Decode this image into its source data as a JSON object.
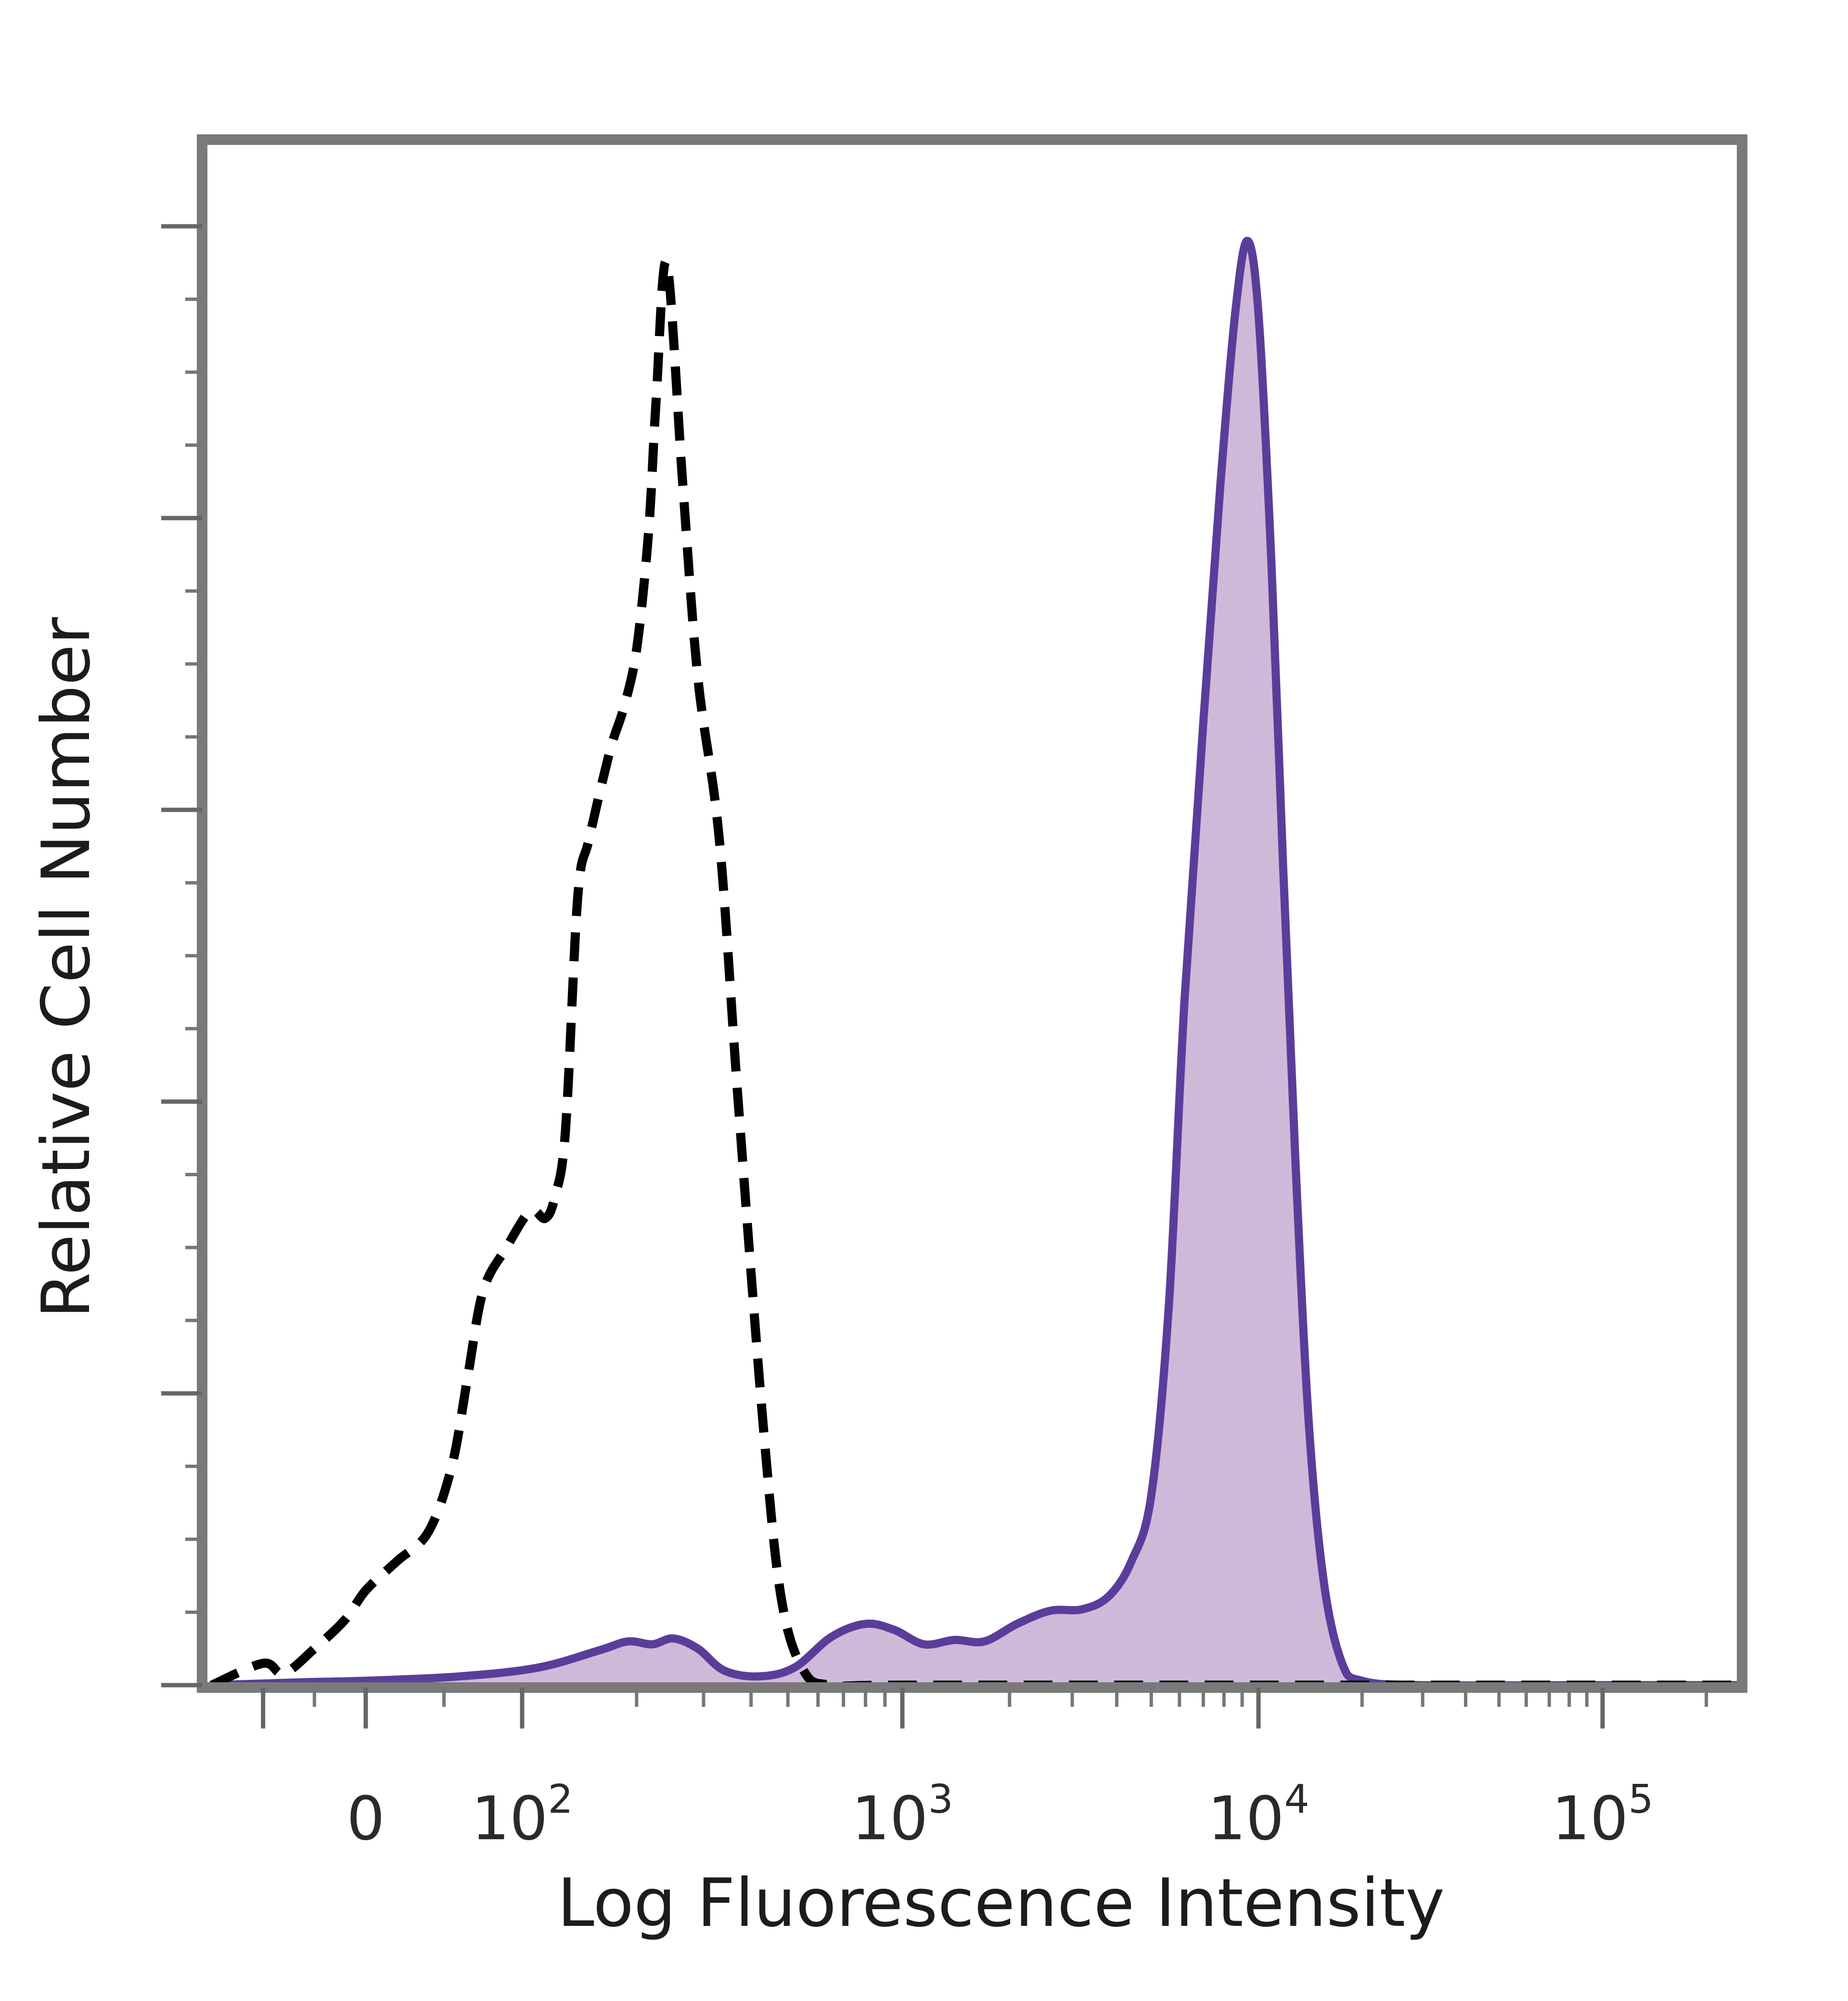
{
  "chart_data": {
    "type": "area",
    "title": "",
    "xlabel": "Log Fluorescence Intensity",
    "ylabel": "Relative Cell Number",
    "x_scale": "biexponential",
    "xlim": [
      -150,
      250000
    ],
    "ylim": [
      0,
      100
    ],
    "grid": false,
    "legend": "none",
    "x_ticks": [
      {
        "value": 0,
        "label": "0",
        "exp": ""
      },
      {
        "value": 100,
        "label": "10",
        "exp": "2"
      },
      {
        "value": 1000,
        "label": "10",
        "exp": "3"
      },
      {
        "value": 10000,
        "label": "10",
        "exp": "4"
      },
      {
        "value": 100000,
        "label": "10",
        "exp": "5"
      }
    ],
    "y_major_ticks": [
      0,
      20,
      40,
      60,
      80,
      100
    ],
    "series": [
      {
        "style": "dashed",
        "color": "#000000",
        "fill": "none",
        "points": [
          [
            -150,
            0
          ],
          [
            -100,
            1.5
          ],
          [
            -80,
            0.8
          ],
          [
            -50,
            2.5
          ],
          [
            -20,
            4.5
          ],
          [
            0,
            6.5
          ],
          [
            20,
            8.5
          ],
          [
            40,
            10.5
          ],
          [
            55,
            15
          ],
          [
            65,
            21
          ],
          [
            75,
            27
          ],
          [
            90,
            30
          ],
          [
            105,
            32.5
          ],
          [
            115,
            32
          ],
          [
            122,
            33.5
          ],
          [
            130,
            38
          ],
          [
            140,
            54
          ],
          [
            150,
            58
          ],
          [
            170,
            64
          ],
          [
            185,
            67
          ],
          [
            200,
            71
          ],
          [
            215,
            79
          ],
          [
            225,
            88
          ],
          [
            240,
            97.5
          ],
          [
            265,
            82
          ],
          [
            290,
            69
          ],
          [
            330,
            58
          ],
          [
            370,
            40
          ],
          [
            430,
            18
          ],
          [
            480,
            6
          ],
          [
            550,
            1
          ],
          [
            650,
            0
          ],
          [
            1000,
            0
          ],
          [
            10000,
            0
          ],
          [
            100000,
            0
          ],
          [
            250000,
            0
          ]
        ]
      },
      {
        "style": "solid",
        "color": "#5a3d9a",
        "fill": "#cfb9d9",
        "points": [
          [
            -150,
            0
          ],
          [
            -60,
            0.2
          ],
          [
            0,
            0.3
          ],
          [
            60,
            0.6
          ],
          [
            110,
            1.2
          ],
          [
            160,
            2.4
          ],
          [
            190,
            3
          ],
          [
            220,
            2.8
          ],
          [
            250,
            3.2
          ],
          [
            290,
            2.5
          ],
          [
            340,
            1
          ],
          [
            420,
            0.6
          ],
          [
            520,
            1.2
          ],
          [
            650,
            3.3
          ],
          [
            800,
            4.2
          ],
          [
            950,
            3.8
          ],
          [
            1150,
            2.8
          ],
          [
            1400,
            3.1
          ],
          [
            1700,
            3
          ],
          [
            2100,
            4.2
          ],
          [
            2600,
            5.1
          ],
          [
            3200,
            5.2
          ],
          [
            3800,
            6.1
          ],
          [
            4400,
            8.5
          ],
          [
            5000,
            13
          ],
          [
            5600,
            26
          ],
          [
            6200,
            47
          ],
          [
            7000,
            66
          ],
          [
            7800,
            82
          ],
          [
            8600,
            94
          ],
          [
            9300,
            99
          ],
          [
            10000,
            94
          ],
          [
            10900,
            77
          ],
          [
            11800,
            56
          ],
          [
            12800,
            36
          ],
          [
            14000,
            18
          ],
          [
            15500,
            7
          ],
          [
            17500,
            1.5
          ],
          [
            20000,
            0.3
          ],
          [
            30000,
            0
          ],
          [
            100000,
            0
          ],
          [
            250000,
            0
          ]
        ]
      }
    ]
  }
}
